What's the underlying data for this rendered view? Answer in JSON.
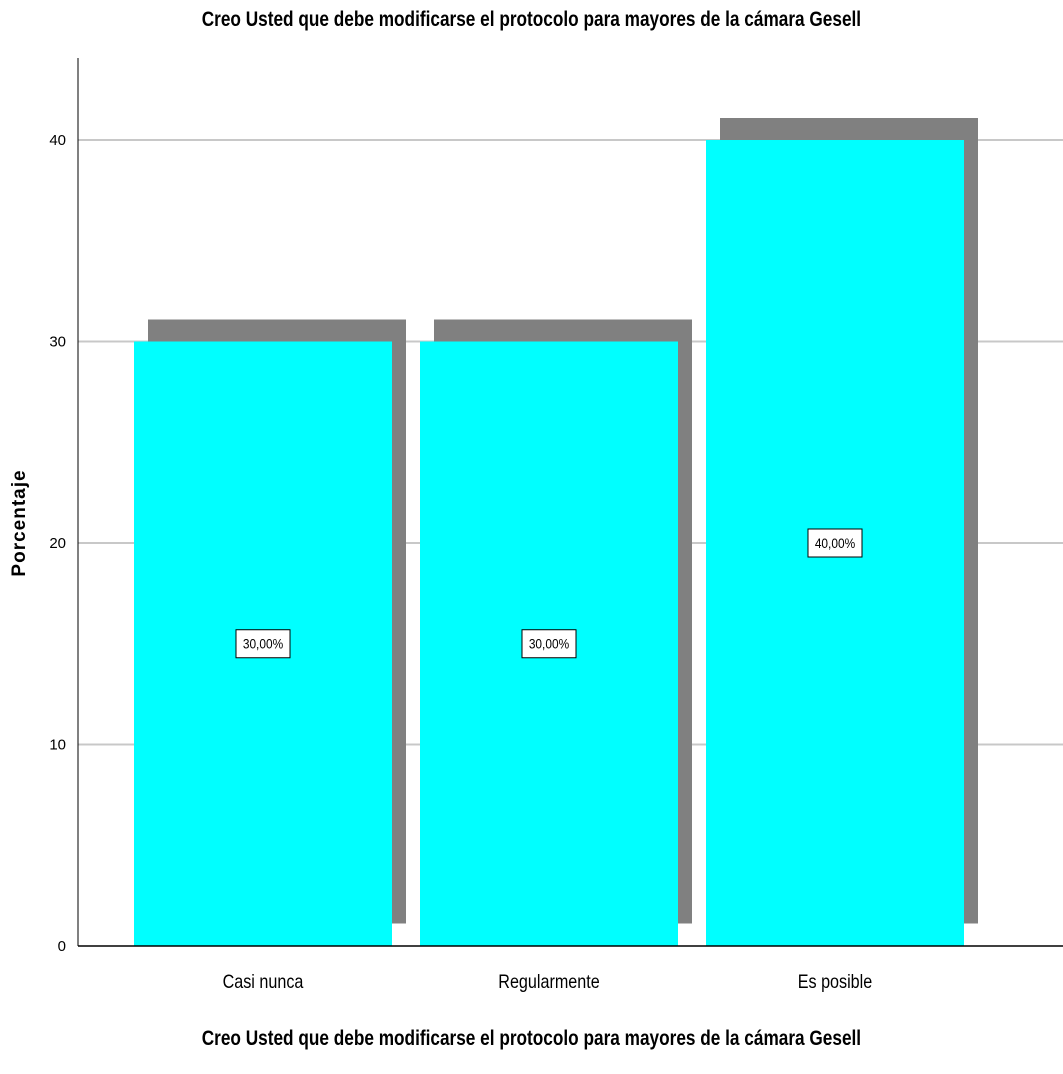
{
  "chart_data": {
    "type": "bar",
    "title": "Creo Usted que debe modificarse el protocolo para mayores de la cámara Gesell",
    "xlabel": "Creo Usted que debe modificarse el protocolo para mayores de la cámara Gesell",
    "ylabel": "Porcentaje",
    "categories": [
      "Casi nunca",
      "Regularmente",
      "Es posible"
    ],
    "values": [
      30,
      30,
      40
    ],
    "data_labels": [
      "30,00%",
      "30,00%",
      "40,00%"
    ],
    "ylim": [
      0,
      44
    ],
    "yticks": [
      0,
      10,
      20,
      30,
      40
    ],
    "grid": true,
    "legend": "none",
    "colors": {
      "bar": "#00FFFF",
      "shadow": "#808080",
      "grid": "#C8C8C8",
      "axis": "#000000"
    }
  }
}
